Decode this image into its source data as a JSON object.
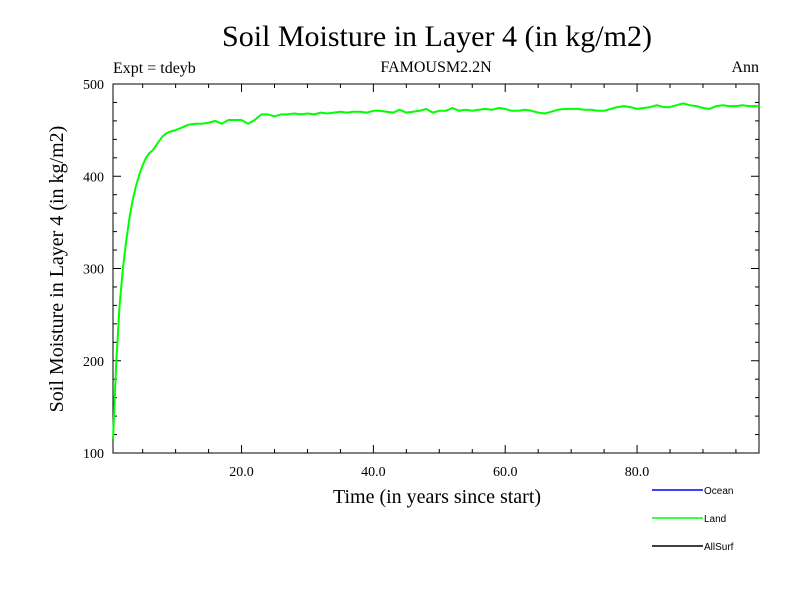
{
  "chart_data": {
    "type": "line",
    "title": "Soil Moisture in Layer 4 (in kg/m2)",
    "subtitle_left": "Expt = tdeyb",
    "subtitle_center": "FAMOUSM2.2N",
    "subtitle_right": "Ann",
    "xlabel": "Time (in years since start)",
    "ylabel": "Soil Moisture in Layer 4 (in kg/m2)",
    "xlim": [
      0.5,
      98.5
    ],
    "ylim": [
      100,
      500
    ],
    "x_ticks": [
      20,
      40,
      60,
      80
    ],
    "x_tick_labels": [
      "20.0",
      "40.0",
      "60.0",
      "80.0"
    ],
    "y_ticks": [
      100,
      200,
      300,
      400,
      500
    ],
    "y_tick_labels": [
      "100",
      "200",
      "300",
      "400",
      "500"
    ],
    "grid": false,
    "legend_position": "bottom-right",
    "series": [
      {
        "name": "Land",
        "color": "#00ff00",
        "x": [
          0.5,
          1,
          1.5,
          2,
          2.5,
          3,
          3.5,
          4,
          4.5,
          5,
          5.5,
          6,
          6.5,
          7,
          7.5,
          8,
          8.5,
          9,
          9.5,
          10,
          11,
          12,
          13,
          14,
          15,
          16,
          17,
          18,
          19,
          20,
          21,
          22,
          23,
          24,
          25,
          26,
          27,
          28,
          29,
          30,
          31,
          32,
          33,
          34,
          35,
          36,
          37,
          38,
          39,
          40,
          41,
          42,
          43,
          44,
          45,
          46,
          47,
          48,
          49,
          50,
          51,
          52,
          53,
          54,
          55,
          56,
          57,
          58,
          59,
          60,
          61,
          62,
          63,
          64,
          65,
          66,
          67,
          68,
          69,
          70,
          71,
          72,
          73,
          74,
          75,
          76,
          77,
          78,
          79,
          80,
          81,
          82,
          83,
          84,
          85,
          86,
          87,
          88,
          89,
          90,
          91,
          92,
          93,
          94,
          95,
          96,
          97,
          98.5
        ],
        "values": [
          115,
          200,
          260,
          300,
          330,
          355,
          375,
          390,
          402,
          412,
          420,
          425,
          428,
          433,
          438,
          443,
          446,
          448,
          449,
          450,
          453,
          456,
          457,
          457,
          458,
          460,
          457,
          461,
          461,
          461,
          457,
          461,
          467,
          467,
          465,
          467,
          467,
          468,
          467,
          468,
          467,
          469,
          468,
          469,
          470,
          469,
          470,
          470,
          469,
          471,
          471,
          470,
          469,
          472,
          469,
          470,
          471,
          473,
          469,
          471,
          471,
          474,
          471,
          472,
          471,
          472,
          473,
          472,
          474,
          473,
          471,
          471,
          472,
          471,
          469,
          468,
          470,
          472,
          473,
          473,
          473,
          472,
          472,
          471,
          471,
          473,
          475,
          476,
          475,
          473,
          474,
          475,
          477,
          475,
          475,
          477,
          479,
          477,
          476,
          474,
          473,
          476,
          477,
          476,
          476,
          477,
          476,
          476
        ]
      }
    ],
    "legend": [
      {
        "name": "Ocean",
        "color": "#0000ff"
      },
      {
        "name": "Land",
        "color": "#00ff00"
      },
      {
        "name": "AllSurf",
        "color": "#000000"
      }
    ]
  }
}
